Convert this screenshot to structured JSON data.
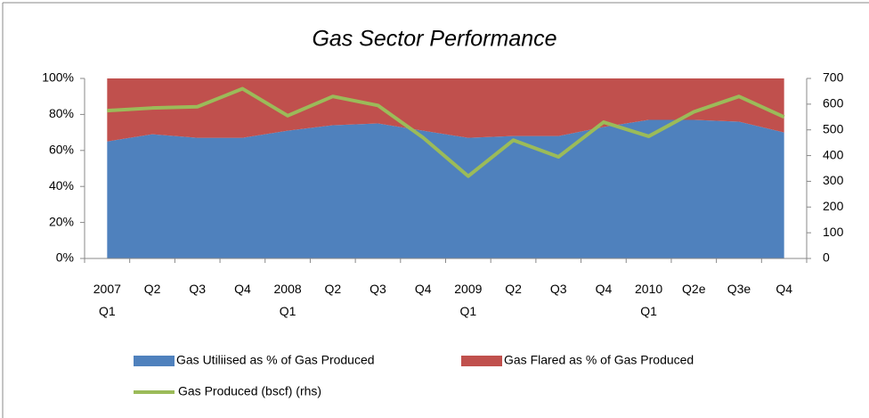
{
  "chart_data": {
    "type": "area",
    "title": "Gas Sector Performance",
    "categories": [
      "2007 Q1",
      "Q2",
      "Q3",
      "Q4",
      "2008 Q1",
      "Q2",
      "Q3",
      "Q4",
      "2009 Q1",
      "Q2",
      "Q3",
      "Q4",
      "2010 Q1",
      "Q2e",
      "Q3e",
      "Q4"
    ],
    "series": [
      {
        "name": "Gas Utiliised as % of Gas Produced",
        "color": "#4f81bd",
        "stacked": true,
        "values": [
          65,
          69,
          67,
          67,
          71,
          74,
          75,
          71,
          67,
          68,
          68,
          73,
          77,
          77,
          76,
          70
        ]
      },
      {
        "name": "Gas Flared as % of Gas Produced",
        "color": "#c0504d",
        "stacked": true,
        "values": [
          35,
          31,
          33,
          33,
          29,
          26,
          25,
          29,
          33,
          32,
          32,
          27,
          23,
          23,
          24,
          30
        ]
      },
      {
        "name": "Gas Produced (bscf) (rhs)",
        "color": "#9bbb59",
        "type": "line",
        "axis": "y2",
        "values": [
          575,
          585,
          590,
          660,
          555,
          630,
          595,
          470,
          320,
          460,
          395,
          530,
          475,
          570,
          630,
          550
        ]
      }
    ],
    "ylim": [
      0,
      100
    ],
    "yticks": [
      {
        "value": 0,
        "label": "0%"
      },
      {
        "value": 20,
        "label": "20%"
      },
      {
        "value": 40,
        "label": "40%"
      },
      {
        "value": 60,
        "label": "60%"
      },
      {
        "value": 80,
        "label": "80%"
      },
      {
        "value": 100,
        "label": "100%"
      }
    ],
    "y2lim": [
      0,
      700
    ],
    "y2ticks": [
      0,
      100,
      200,
      300,
      400,
      500,
      600,
      700
    ],
    "grid": false
  }
}
